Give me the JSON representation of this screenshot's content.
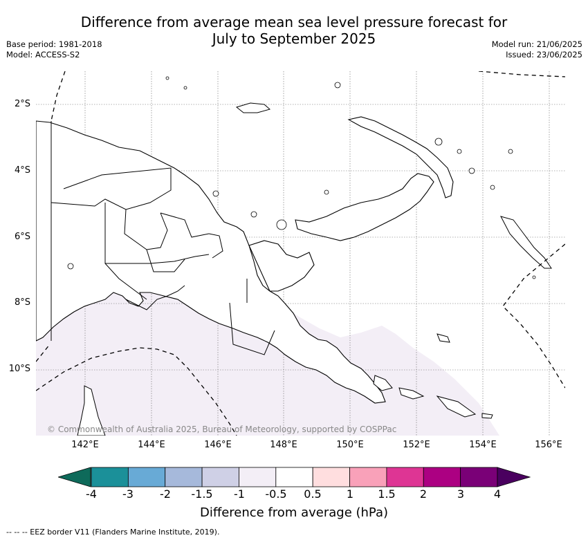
{
  "title_line1": "Difference from average mean sea level pressure forecast for",
  "title_line2": "July to September 2025",
  "base_period": "Base period: 1981-2018",
  "model": "Model: ACCESS-S2",
  "model_run": "Model run: 21/06/2025",
  "issued": "Issued: 23/06/2025",
  "lat_labels": [
    "2°S",
    "4°S",
    "6°S",
    "8°S",
    "10°S"
  ],
  "lon_labels": [
    "142°E",
    "144°E",
    "146°E",
    "148°E",
    "150°E",
    "152°E",
    "154°E",
    "156°E"
  ],
  "copyright": "© Commonwealth of Australia 2025, Bureau of Meteorology, supported by COSPPac",
  "colorbar": {
    "ticks": [
      "-4",
      "-3",
      "-2",
      "-1.5",
      "-1",
      "-0.5",
      "0.5",
      "1",
      "1.5",
      "2",
      "3",
      "4"
    ],
    "low_extension_color": "#0e6a5a",
    "high_extension_color": "#4a005f",
    "colors": [
      "#1b9099",
      "#68aad6",
      "#a6b9db",
      "#cfd0e6",
      "#f3eef6",
      "#ffffff",
      "#ffdedf",
      "#f9a1b9",
      "#de3594",
      "#ac0082",
      "#7a0077"
    ],
    "label": "Difference from average (hPa)"
  },
  "map": {
    "region": "Papua New Guinea",
    "shading": {
      "color": "#f3eef6",
      "range": "-1 to -0.5"
    },
    "lines": [
      "coastline",
      "provincial boundaries",
      "EEZ border"
    ]
  },
  "eez_legend": "--  --  -- EEZ border V11 (Flanders Marine Institute, 2019)."
}
